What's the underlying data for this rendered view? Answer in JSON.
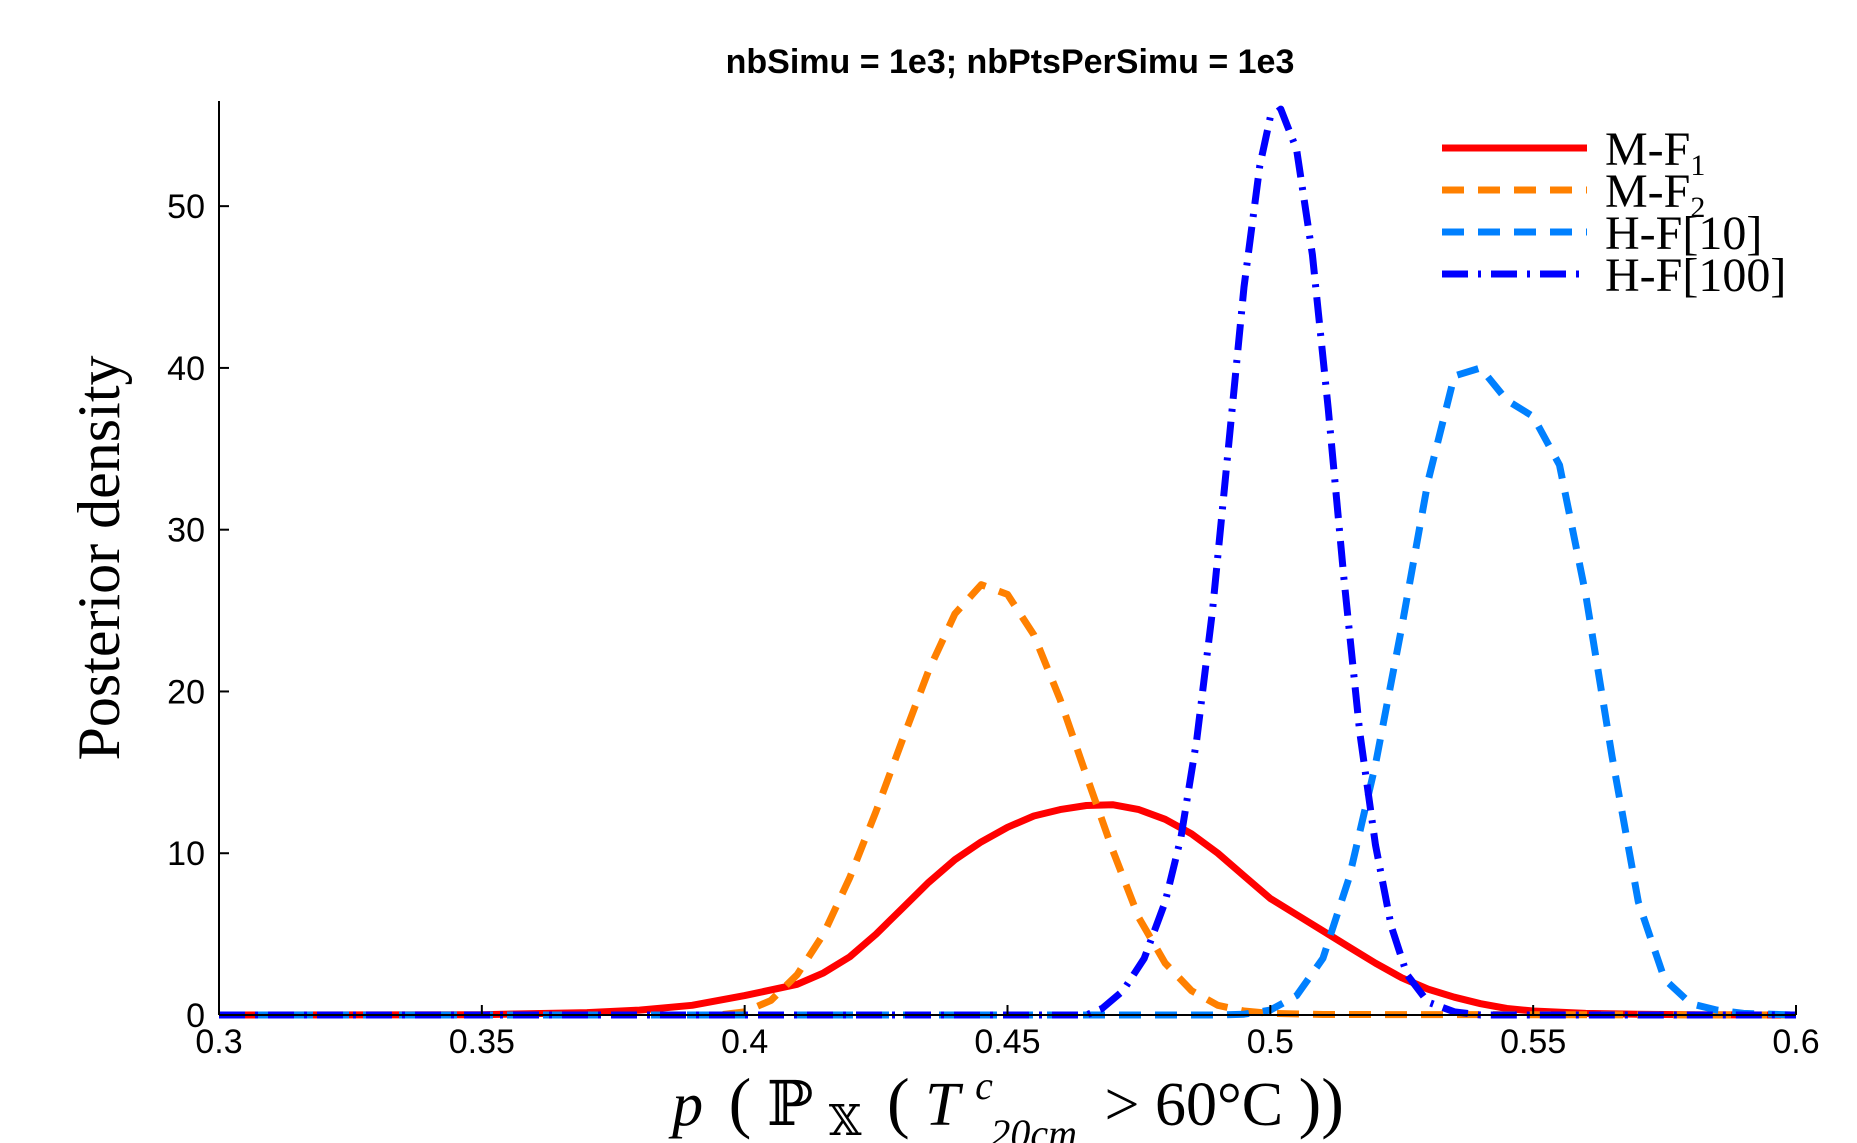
{
  "chart_data": {
    "type": "line",
    "title": "nbSimu = 1e3; nbPtsPerSimu = 1e3",
    "ylabel": "Posterior density",
    "xlabel": {
      "p": "p",
      "paren_open": "(",
      "P": "ℙ",
      "X": "𝕏",
      "paren_open_2": "(",
      "T": "T",
      "sup": "c",
      "sub": "20cm",
      "relation": "> 60°C",
      "paren_close": "))"
    },
    "xlim": [
      0.3,
      0.6
    ],
    "ylim": [
      0,
      56.5
    ],
    "xticks": [
      "0.3",
      "0.35",
      "0.4",
      "0.45",
      "0.5",
      "0.55",
      "0.6"
    ],
    "yticks": [
      "0",
      "10",
      "20",
      "30",
      "40",
      "50"
    ],
    "legend_position": "top-right",
    "grid": false,
    "series": [
      {
        "name": "M-F",
        "name_sub": "1",
        "color": "#ff0000",
        "style": "solid",
        "points": [
          [
            0.3,
            0
          ],
          [
            0.35,
            0.02
          ],
          [
            0.37,
            0.15
          ],
          [
            0.38,
            0.3
          ],
          [
            0.39,
            0.6
          ],
          [
            0.4,
            1.2
          ],
          [
            0.41,
            1.9
          ],
          [
            0.415,
            2.6
          ],
          [
            0.42,
            3.6
          ],
          [
            0.425,
            5.0
          ],
          [
            0.43,
            6.6
          ],
          [
            0.435,
            8.2
          ],
          [
            0.44,
            9.6
          ],
          [
            0.445,
            10.7
          ],
          [
            0.45,
            11.6
          ],
          [
            0.455,
            12.3
          ],
          [
            0.46,
            12.7
          ],
          [
            0.465,
            12.95
          ],
          [
            0.47,
            13.0
          ],
          [
            0.475,
            12.7
          ],
          [
            0.48,
            12.1
          ],
          [
            0.485,
            11.2
          ],
          [
            0.49,
            10.0
          ],
          [
            0.495,
            8.6
          ],
          [
            0.5,
            7.2
          ],
          [
            0.505,
            6.2
          ],
          [
            0.51,
            5.2
          ],
          [
            0.515,
            4.2
          ],
          [
            0.52,
            3.2
          ],
          [
            0.525,
            2.3
          ],
          [
            0.53,
            1.6
          ],
          [
            0.535,
            1.1
          ],
          [
            0.54,
            0.7
          ],
          [
            0.545,
            0.4
          ],
          [
            0.55,
            0.25
          ],
          [
            0.56,
            0.1
          ],
          [
            0.57,
            0.05
          ],
          [
            0.58,
            0.02
          ],
          [
            0.6,
            0
          ]
        ]
      },
      {
        "name": "M-F",
        "name_sub": "2",
        "color": "#ff8000",
        "style": "dashed",
        "points": [
          [
            0.3,
            0
          ],
          [
            0.395,
            0
          ],
          [
            0.4,
            0.2
          ],
          [
            0.405,
            0.9
          ],
          [
            0.41,
            2.5
          ],
          [
            0.415,
            5.0
          ],
          [
            0.42,
            8.5
          ],
          [
            0.425,
            12.6
          ],
          [
            0.43,
            17.0
          ],
          [
            0.435,
            21.3
          ],
          [
            0.44,
            24.8
          ],
          [
            0.445,
            26.6
          ],
          [
            0.45,
            26.0
          ],
          [
            0.455,
            23.5
          ],
          [
            0.46,
            19.5
          ],
          [
            0.465,
            14.8
          ],
          [
            0.47,
            10.2
          ],
          [
            0.475,
            6.0
          ],
          [
            0.48,
            3.2
          ],
          [
            0.485,
            1.5
          ],
          [
            0.49,
            0.6
          ],
          [
            0.495,
            0.25
          ],
          [
            0.5,
            0.1
          ],
          [
            0.51,
            0.03
          ],
          [
            0.6,
            0
          ]
        ]
      },
      {
        "name": "H-F[10]",
        "color": "#0080ff",
        "style": "dashed",
        "points": [
          [
            0.3,
            0
          ],
          [
            0.49,
            0
          ],
          [
            0.495,
            0.05
          ],
          [
            0.5,
            0.3
          ],
          [
            0.505,
            1.2
          ],
          [
            0.51,
            3.5
          ],
          [
            0.515,
            8.5
          ],
          [
            0.52,
            15.5
          ],
          [
            0.525,
            24.0
          ],
          [
            0.53,
            33.0
          ],
          [
            0.535,
            39.5
          ],
          [
            0.54,
            40.0
          ],
          [
            0.545,
            38.0
          ],
          [
            0.55,
            37.0
          ],
          [
            0.555,
            34.0
          ],
          [
            0.56,
            26.0
          ],
          [
            0.565,
            16.0
          ],
          [
            0.57,
            7.0
          ],
          [
            0.575,
            2.2
          ],
          [
            0.58,
            0.7
          ],
          [
            0.585,
            0.3
          ],
          [
            0.59,
            0.1
          ],
          [
            0.6,
            0
          ]
        ]
      },
      {
        "name": "H-F[100]",
        "color": "#0000ff",
        "style": "dashdot",
        "points": [
          [
            0.3,
            0
          ],
          [
            0.465,
            0
          ],
          [
            0.468,
            0.4
          ],
          [
            0.472,
            1.5
          ],
          [
            0.476,
            3.5
          ],
          [
            0.48,
            7.0
          ],
          [
            0.483,
            11.0
          ],
          [
            0.486,
            17.0
          ],
          [
            0.489,
            25.0
          ],
          [
            0.492,
            35.0
          ],
          [
            0.495,
            45.0
          ],
          [
            0.498,
            52.5
          ],
          [
            0.5,
            55.5
          ],
          [
            0.502,
            56.0
          ],
          [
            0.505,
            53.5
          ],
          [
            0.508,
            47.0
          ],
          [
            0.511,
            37.5
          ],
          [
            0.514,
            27.0
          ],
          [
            0.517,
            17.5
          ],
          [
            0.52,
            10.5
          ],
          [
            0.523,
            5.5
          ],
          [
            0.526,
            2.5
          ],
          [
            0.53,
            0.8
          ],
          [
            0.535,
            0.2
          ],
          [
            0.54,
            0
          ],
          [
            0.6,
            0
          ]
        ]
      }
    ]
  }
}
